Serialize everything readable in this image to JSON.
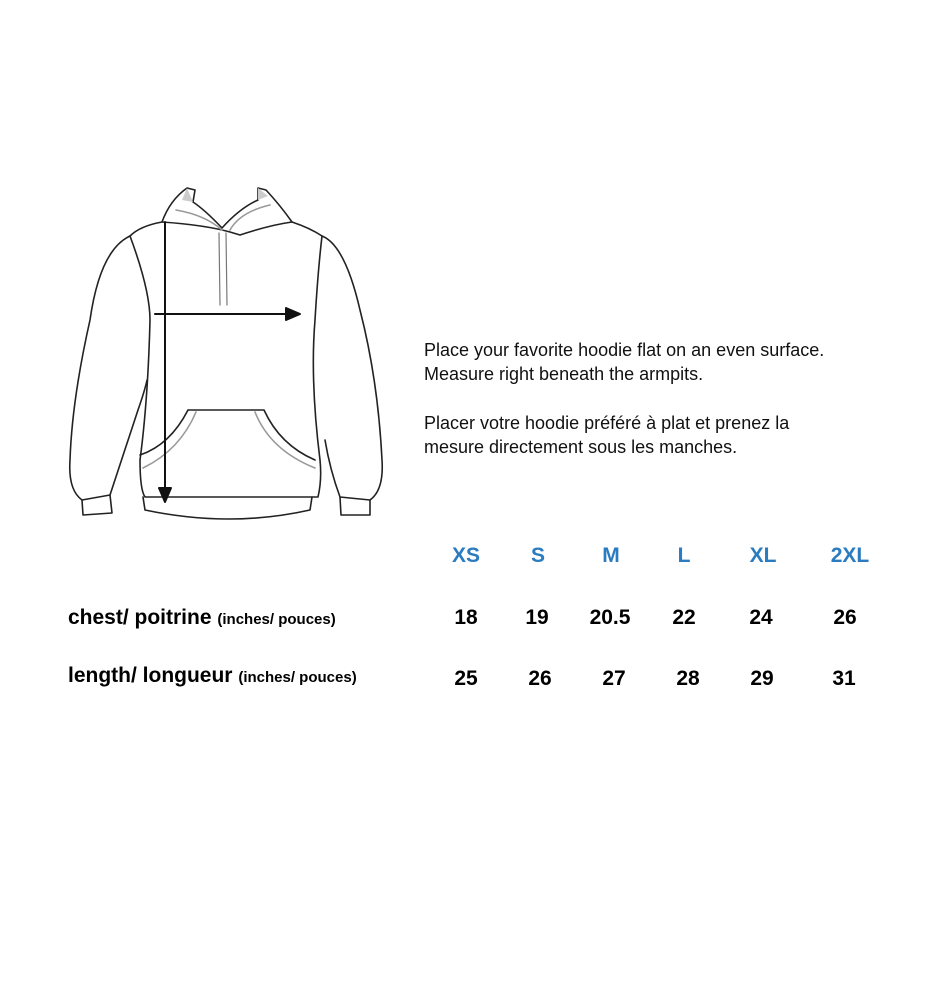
{
  "instructions": {
    "en": [
      "Place your favorite hoodie flat on an even surface.",
      "Measure right beneath the armpits."
    ],
    "fr": [
      "Placer votre hoodie préféré à plat et prenez la",
      "mesure directement sous les manches."
    ]
  },
  "size_chart": {
    "sizes": [
      "XS",
      "S",
      "M",
      "L",
      "XL",
      "2XL"
    ],
    "rows": [
      {
        "label": "chest/ poitrine",
        "unit": "(inches/ pouces)",
        "values": [
          "18",
          "19",
          "20.5",
          "22",
          "24",
          "26"
        ]
      },
      {
        "label": "length/ longueur",
        "unit": "(inches/ pouces)",
        "values": [
          "25",
          "26",
          "27",
          "28",
          "29",
          "31"
        ]
      }
    ]
  },
  "colors": {
    "size_header": "#2a7bbf",
    "text": "#000000"
  },
  "illustration": "hoodie-measurement-diagram"
}
